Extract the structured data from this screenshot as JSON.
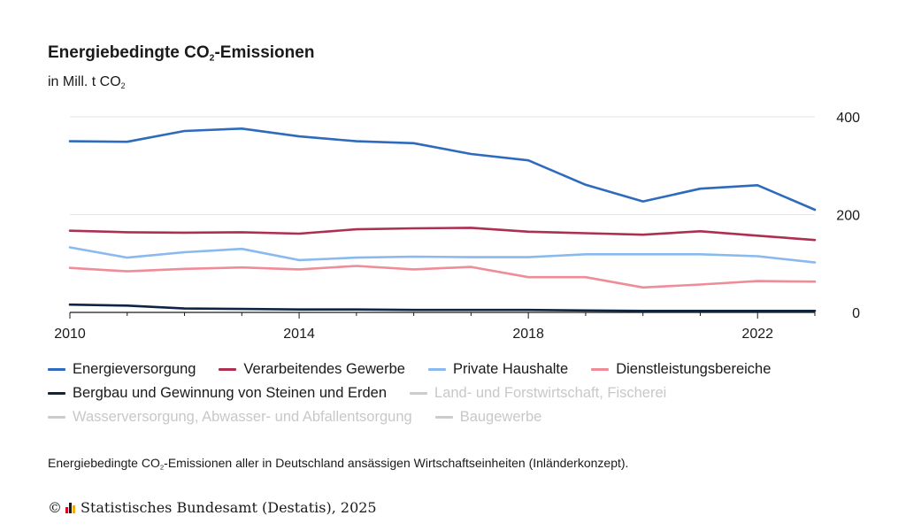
{
  "title": {
    "main_pre": "Energiebedingte CO",
    "main_sub": "2",
    "main_post": "-Emissionen",
    "unit_pre": "in Mill. t CO",
    "unit_sub": "2"
  },
  "legend": [
    {
      "label": "Energieversorgung",
      "color": "#2f6bbd",
      "active": true
    },
    {
      "label": "Verarbeitendes Gewerbe",
      "color": "#ad3053",
      "active": true
    },
    {
      "label": "Private Haushalte",
      "color": "#8ab9ef",
      "active": true
    },
    {
      "label": "Dienstleistungsbereiche",
      "color": "#ee8d98",
      "active": true
    },
    {
      "label": "Bergbau und Gewinnung von Steinen und Erden",
      "color": "#0d2545",
      "active": true
    },
    {
      "label": "Land- und Forstwirtschaft, Fischerei",
      "color": "#cccccc",
      "active": false
    },
    {
      "label": "Wasserversorgung, Abwasser- und Abfallentsorgung",
      "color": "#cccccc",
      "active": false
    },
    {
      "label": "Baugewerbe",
      "color": "#cccccc",
      "active": false
    }
  ],
  "footnote": {
    "pre": "Energiebedingte CO",
    "sub": "2",
    "post": "-Emissionen aller in Deutschland ansässigen Wirtschaftseinheiten (Inländerkonzept)."
  },
  "source": {
    "copyright": "©",
    "text": "Statistisches Bundesamt (Destatis), 2025",
    "logo_colors": [
      "#e2001a",
      "#1a1a1a",
      "#f2a900"
    ]
  },
  "chart_data": {
    "type": "line",
    "x": [
      2010,
      2011,
      2012,
      2013,
      2014,
      2015,
      2016,
      2017,
      2018,
      2019,
      2020,
      2021,
      2022,
      2023
    ],
    "xticks": [
      2010,
      2014,
      2018,
      2022
    ],
    "xlim": [
      2010,
      2023
    ],
    "ylim": [
      0,
      400
    ],
    "yticks": [
      0,
      200,
      400
    ],
    "y_axis_position": "right",
    "grid": true,
    "legend_position": "bottom",
    "series": [
      {
        "name": "Energieversorgung",
        "color": "#2f6bbd",
        "values": [
          350,
          349,
          371,
          376,
          360,
          350,
          346,
          324,
          311,
          261,
          227,
          253,
          260,
          210
        ]
      },
      {
        "name": "Verarbeitendes Gewerbe",
        "color": "#ad3053",
        "values": [
          167,
          164,
          163,
          164,
          161,
          170,
          172,
          173,
          165,
          162,
          159,
          166,
          157,
          148
        ]
      },
      {
        "name": "Private Haushalte",
        "color": "#8ab9ef",
        "values": [
          133,
          112,
          123,
          130,
          107,
          112,
          114,
          113,
          113,
          119,
          119,
          119,
          115,
          102
        ]
      },
      {
        "name": "Dienstleistungsbereiche",
        "color": "#ee8d98",
        "values": [
          91,
          84,
          89,
          92,
          88,
          95,
          88,
          93,
          72,
          72,
          51,
          57,
          64,
          63
        ]
      },
      {
        "name": "Bergbau und Gewinnung von Steinen und Erden",
        "color": "#0d2545",
        "values": [
          16,
          14,
          8,
          7,
          6,
          6,
          5,
          5,
          5,
          4,
          3,
          3,
          3,
          3
        ]
      }
    ]
  }
}
